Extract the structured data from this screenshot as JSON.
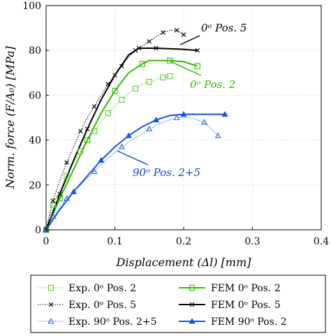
{
  "chart_data": {
    "type": "line",
    "xlabel": "Displacement (Δl) [mm]",
    "ylabel": "Norm. force (F/A₀) [MPa]",
    "xlim": [
      0,
      0.4
    ],
    "ylim": [
      0,
      100
    ],
    "xticks": [
      "0",
      "0.1",
      "0.2",
      "0.3",
      "0.4"
    ],
    "yticks": [
      "0",
      "20",
      "40",
      "60",
      "80",
      "100"
    ],
    "grid": "dashed",
    "legend_position": "bottom",
    "annotations": [
      {
        "text": "0ᵒ Pos. 5",
        "color": "#000000"
      },
      {
        "text": "0ᵒ Pos. 2",
        "color": "#33bb00"
      },
      {
        "text": "90ᵒ Pos. 2+5",
        "color": "#1144cc"
      }
    ],
    "series": [
      {
        "name": "Exp. 0ᵒ Pos. 2",
        "color": "#66cc33",
        "style": "dotted",
        "marker": "square",
        "x": [
          0,
          0.005,
          0.01,
          0.02,
          0.03,
          0.04,
          0.05,
          0.06,
          0.07,
          0.08,
          0.09,
          0.1,
          0.11,
          0.12,
          0.13,
          0.14,
          0.15,
          0.16,
          0.17,
          0.18
        ],
        "y": [
          0,
          6,
          11,
          18,
          24,
          30,
          35,
          40,
          44,
          48,
          52,
          55,
          58,
          61,
          63,
          65,
          66,
          67,
          68,
          68.5
        ]
      },
      {
        "name": "Exp. 0ᵒ Pos. 5",
        "color": "#000000",
        "style": "dotted",
        "marker": "x",
        "x": [
          0,
          0.005,
          0.01,
          0.02,
          0.03,
          0.04,
          0.05,
          0.06,
          0.07,
          0.08,
          0.09,
          0.1,
          0.11,
          0.12,
          0.13,
          0.14,
          0.15,
          0.16,
          0.17,
          0.18,
          0.19,
          0.2
        ],
        "y": [
          0,
          7,
          13,
          22,
          30,
          37,
          44,
          50,
          55,
          60,
          65,
          69,
          73,
          77,
          80,
          82,
          84,
          86,
          88,
          89,
          89,
          87
        ]
      },
      {
        "name": "Exp. 90ᵒ Pos. 2+5",
        "color": "#3366dd",
        "style": "dotted",
        "marker": "triangle",
        "x": [
          0,
          0.005,
          0.01,
          0.02,
          0.03,
          0.05,
          0.07,
          0.09,
          0.11,
          0.13,
          0.15,
          0.17,
          0.19,
          0.21,
          0.23,
          0.25
        ],
        "y": [
          0,
          3,
          6,
          10,
          14,
          20,
          26,
          32,
          37,
          41,
          45,
          48,
          50,
          50,
          48,
          42
        ]
      },
      {
        "name": "FEM 0ᵒ Pos. 2",
        "color": "#33bb00",
        "style": "solid",
        "marker": "square",
        "x": [
          0,
          0.01,
          0.02,
          0.04,
          0.06,
          0.08,
          0.1,
          0.12,
          0.14,
          0.15,
          0.18,
          0.2,
          0.22
        ],
        "y": [
          0,
          7,
          14,
          27,
          40,
          52,
          62,
          70,
          74,
          75.5,
          75.5,
          75,
          73
        ]
      },
      {
        "name": "FEM 0ᵒ Pos. 5",
        "color": "#000000",
        "style": "solid",
        "marker": "x",
        "x": [
          0,
          0.01,
          0.02,
          0.04,
          0.06,
          0.08,
          0.1,
          0.12,
          0.135,
          0.14,
          0.16,
          0.2,
          0.22
        ],
        "y": [
          0,
          8,
          16,
          31,
          45,
          58,
          69,
          78,
          81,
          81,
          81,
          80.5,
          80
        ]
      },
      {
        "name": "FEM 90ᵒ Pos. 2",
        "color": "#1155dd",
        "style": "solid",
        "marker": "triangle",
        "x": [
          0,
          0.02,
          0.04,
          0.06,
          0.08,
          0.1,
          0.12,
          0.14,
          0.16,
          0.18,
          0.2,
          0.22,
          0.26
        ],
        "y": [
          0,
          9,
          17,
          24,
          31,
          37,
          42,
          46,
          49,
          51,
          51.5,
          51.5,
          51.5
        ]
      }
    ]
  }
}
